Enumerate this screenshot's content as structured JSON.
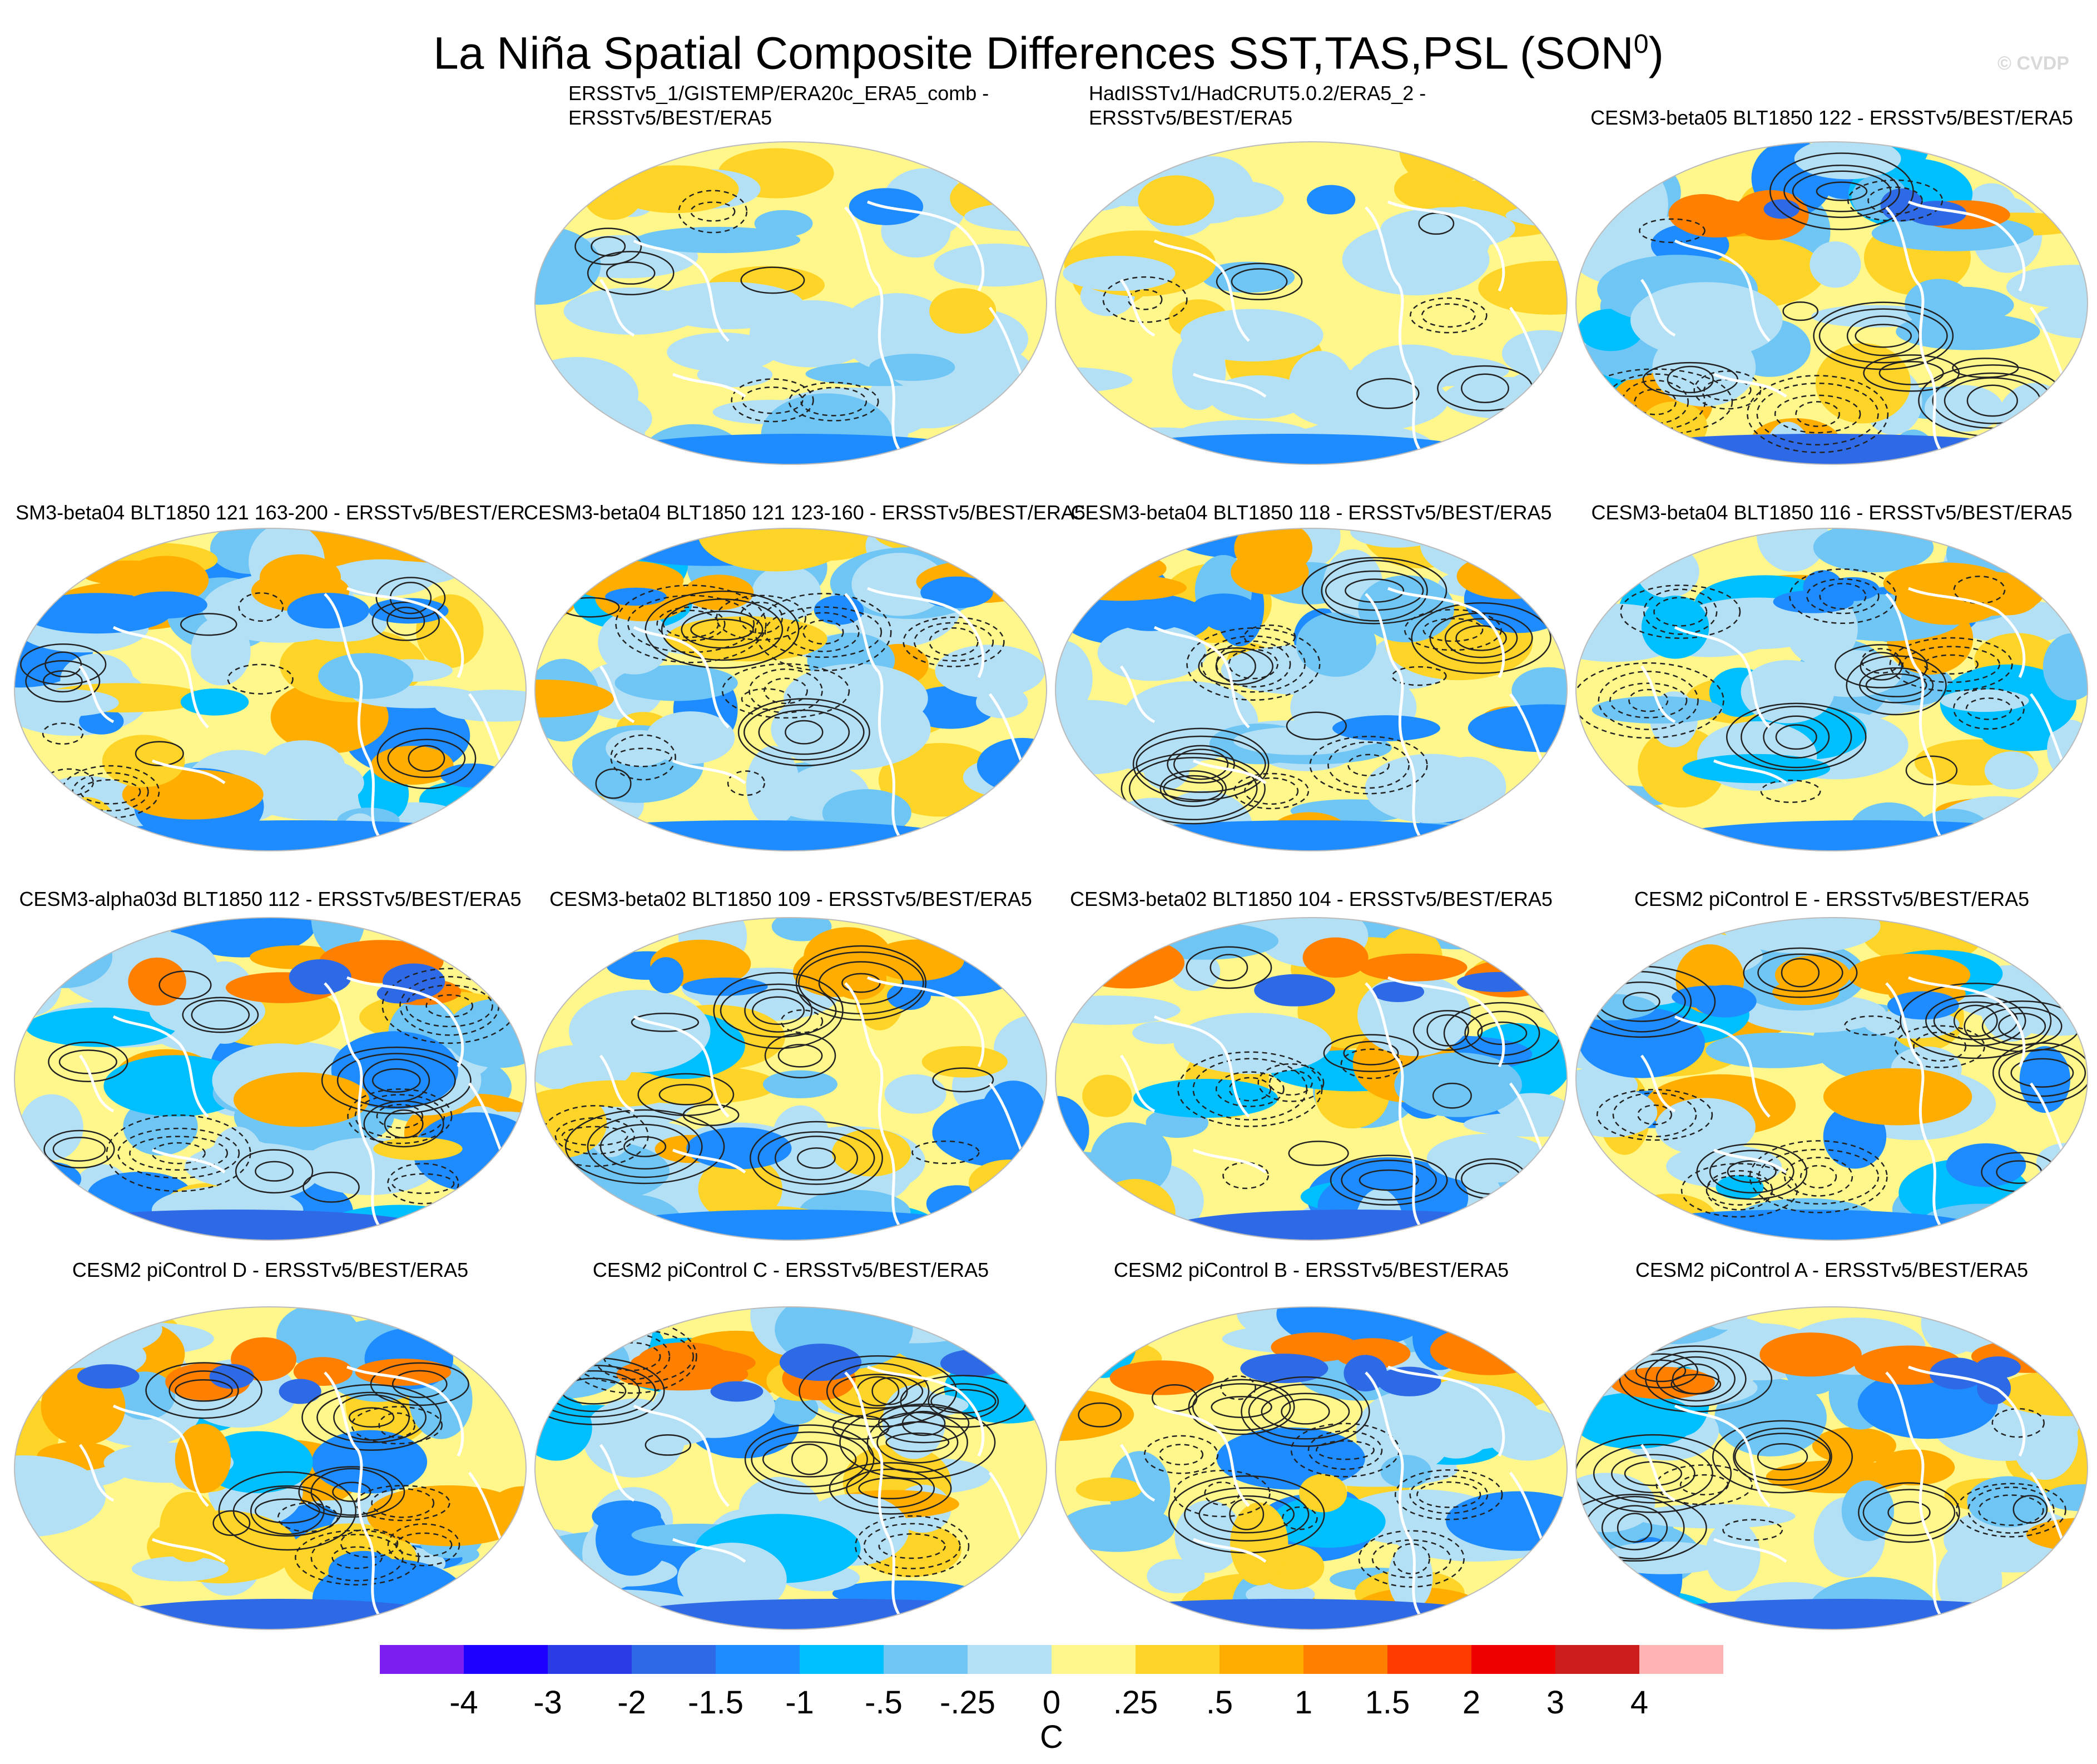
{
  "title": "La Niña Spatial Composite Differences SST,TAS,PSL (SON",
  "title_superscript": "0",
  "title_close": ")",
  "copyright": "© CVDP",
  "panels": [
    {
      "id": "ersst-gistemp",
      "title_lines": [
        "ERSSTv5_1/GISTEMP/ERA20c_ERA5_comb -",
        "ERSSTv5/BEST/ERA5"
      ],
      "align": "left",
      "pattern": "weak"
    },
    {
      "id": "hadisst-hadcrut",
      "title_lines": [
        "HadISSTv1/HadCRUT5.0.2/ERA5_2 -",
        "ERSSTv5/BEST/ERA5"
      ],
      "align": "left",
      "pattern": "weak"
    },
    {
      "id": "beta05-122",
      "title_lines": [
        "CESM3-beta05 BLT1850 122 - ERSSTv5/BEST/ERA5"
      ],
      "align": "center",
      "pattern": "strong"
    },
    {
      "id": "beta04-121-163",
      "title_lines": [
        "SM3-beta04 BLT1850 121 163-200 - ERSSTv5/BEST/ER"
      ],
      "align": "center",
      "pattern": "medium"
    },
    {
      "id": "beta04-121-123",
      "title_lines": [
        "CESM3-beta04 BLT1850 121 123-160 - ERSSTv5/BEST/ERA5"
      ],
      "align": "center",
      "pattern": "medium"
    },
    {
      "id": "beta04-118",
      "title_lines": [
        "CESM3-beta04 BLT1850 118 - ERSSTv5/BEST/ERA5"
      ],
      "align": "center",
      "pattern": "medium"
    },
    {
      "id": "beta04-116",
      "title_lines": [
        "CESM3-beta04 BLT1850 116 - ERSSTv5/BEST/ERA5"
      ],
      "align": "center",
      "pattern": "medium"
    },
    {
      "id": "alpha03d-112",
      "title_lines": [
        "CESM3-alpha03d BLT1850 112 - ERSSTv5/BEST/ERA5"
      ],
      "align": "center",
      "pattern": "strong"
    },
    {
      "id": "beta02-109",
      "title_lines": [
        "CESM3-beta02 BLT1850 109 - ERSSTv5/BEST/ERA5"
      ],
      "align": "center",
      "pattern": "medium"
    },
    {
      "id": "beta02-104",
      "title_lines": [
        "CESM3-beta02 BLT1850 104 - ERSSTv5/BEST/ERA5"
      ],
      "align": "center",
      "pattern": "strong"
    },
    {
      "id": "picontrol-e",
      "title_lines": [
        "CESM2 piControl E - ERSSTv5/BEST/ERA5"
      ],
      "align": "center",
      "pattern": "medium"
    },
    {
      "id": "picontrol-d",
      "title_lines": [
        "CESM2 piControl D - ERSSTv5/BEST/ERA5"
      ],
      "align": "center",
      "pattern": "strong"
    },
    {
      "id": "picontrol-c",
      "title_lines": [
        "CESM2 piControl C - ERSSTv5/BEST/ERA5"
      ],
      "align": "center",
      "pattern": "strong"
    },
    {
      "id": "picontrol-b",
      "title_lines": [
        "CESM2 piControl B - ERSSTv5/BEST/ERA5"
      ],
      "align": "center",
      "pattern": "strong"
    },
    {
      "id": "picontrol-a",
      "title_lines": [
        "CESM2 piControl A - ERSSTv5/BEST/ERA5"
      ],
      "align": "center",
      "pattern": "strong"
    }
  ],
  "colorbar": {
    "colors": [
      "#7d1ef0",
      "#1e00ff",
      "#2a3ce6",
      "#2f6ae6",
      "#1e8cff",
      "#00bfff",
      "#6fc6f5",
      "#b4e0f5",
      "#fff78c",
      "#ffd428",
      "#ffad00",
      "#ff7f00",
      "#ff3c00",
      "#ee0000",
      "#cd1e1e",
      "#ffb4b4"
    ],
    "labels": [
      "-4",
      "-3",
      "-2",
      "-1.5",
      "-1",
      "-.5",
      "-.25",
      "0",
      ".25",
      ".5",
      "1",
      "1.5",
      "2",
      "3",
      "4"
    ],
    "unit": "C"
  }
}
